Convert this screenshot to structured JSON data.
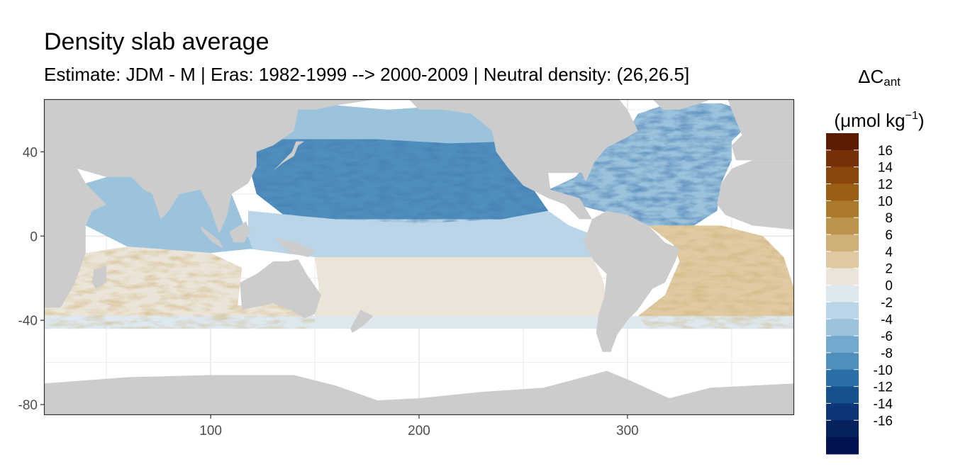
{
  "chart_data": {
    "type": "heatmap",
    "title": "Density slab average",
    "subtitle": "Estimate: JDM - M | Eras: 1982-1999 --> 2000-2009 | Neutral density: (26,26.5]",
    "xlabel": "",
    "ylabel": "",
    "xlim": [
      20,
      380
    ],
    "ylim": [
      -85,
      65
    ],
    "x_ticks": [
      100,
      200,
      300
    ],
    "y_ticks": [
      40,
      0,
      -40,
      -80
    ],
    "grid": true,
    "legend_position": "right",
    "legend": {
      "title_main": "ΔC",
      "title_sub": "ant",
      "unit_prefix": "(μmol kg",
      "unit_sup": "−1",
      "unit_suffix": ")",
      "labels": [
        "16",
        "14",
        "12",
        "10",
        "8",
        "6",
        "4",
        "2",
        "0",
        "-2",
        "-4",
        "-6",
        "-8",
        "-10",
        "-12",
        "-14",
        "-16"
      ],
      "colors": [
        "#5e1b03",
        "#773109",
        "#8b470b",
        "#9b5f17",
        "#ac7a2c",
        "#bd944b",
        "#ceb078",
        "#dfcaa2",
        "#ebe4d8",
        "#dde8ef",
        "#bad5e7",
        "#9cc3dc",
        "#74a9cf",
        "#4f8fbd",
        "#2a6fa8",
        "#17528f",
        "#0d3577",
        "#05225f",
        "#021350"
      ]
    },
    "colors": {
      "land": "#cccccc",
      "no_data": "#ffffff",
      "grid": "#ebebeb",
      "panel_border": "#333333"
    },
    "regions": [
      {
        "name": "north-pacific-subtropics",
        "value": -8
      },
      {
        "name": "north-pacific-subpolar",
        "value": -3
      },
      {
        "name": "equatorial-pacific",
        "value": -2
      },
      {
        "name": "south-pacific-subtropics",
        "value": 2
      },
      {
        "name": "south-indian-subtropics",
        "value": 3
      },
      {
        "name": "north-indian",
        "value": -3
      },
      {
        "name": "north-atlantic",
        "value": -3
      },
      {
        "name": "south-atlantic-subtropics",
        "value": 4
      },
      {
        "name": "southern-boundary-band",
        "value": 1
      }
    ]
  }
}
